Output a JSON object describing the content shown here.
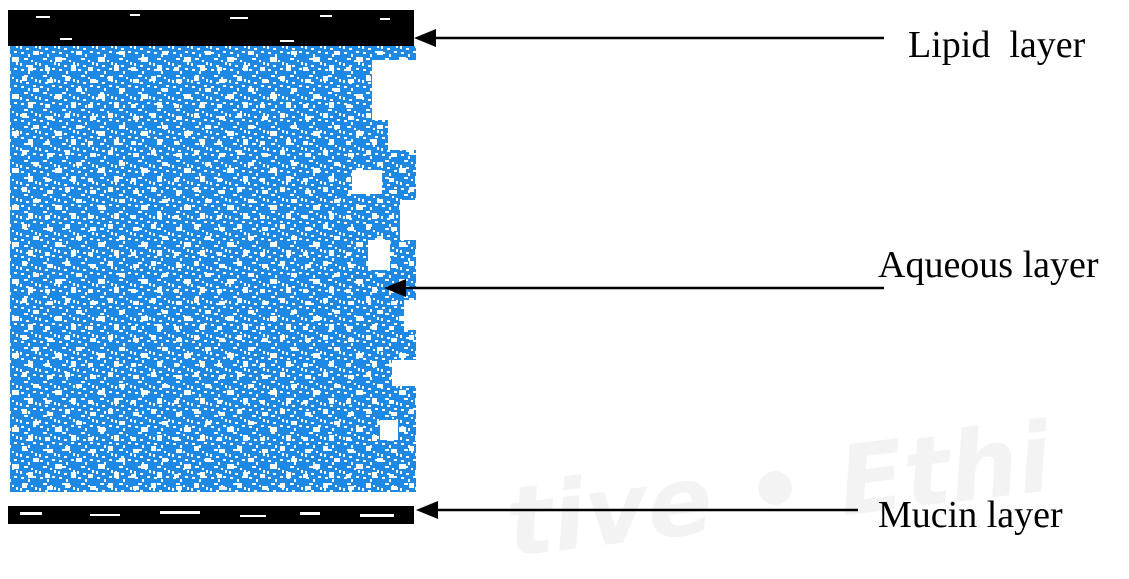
{
  "labels": {
    "lipid": "Lipid  layer",
    "aqueous": "Aqueous layer",
    "mucin": "Mucin layer"
  },
  "watermark": "tive • Ethi",
  "colors": {
    "aqueous": "#1e88e5",
    "band": "#000000",
    "arrow": "#000000"
  }
}
